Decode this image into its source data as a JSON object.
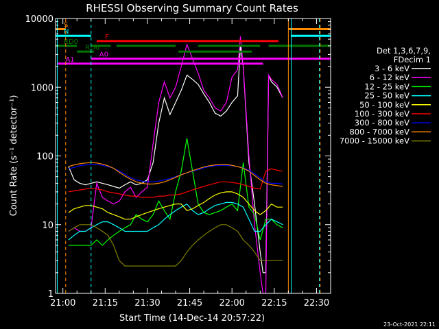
{
  "chart_data": {
    "type": "line",
    "title": "RHESSI Observing Summary Count Rates",
    "xlabel": "Start Time (14-Dec-14 20:57:22)",
    "ylabel": "Count Rate (s⁻¹ detector⁻¹)",
    "yscale": "log",
    "ylim": [
      1,
      10000
    ],
    "xlim": [
      57.4,
      155
    ],
    "x_unit": "minutes after 20:00 UT",
    "x_ticks": [
      {
        "value": 60,
        "label": "21:00"
      },
      {
        "value": 75,
        "label": "21:15"
      },
      {
        "value": 90,
        "label": "21:30"
      },
      {
        "value": 105,
        "label": "21:45"
      },
      {
        "value": 120,
        "label": "22:00"
      },
      {
        "value": 135,
        "label": "22:15"
      },
      {
        "value": 150,
        "label": "22:30"
      }
    ],
    "y_ticks": [
      {
        "value": 1,
        "label": "1"
      },
      {
        "value": 10,
        "label": "10"
      },
      {
        "value": 100,
        "label": "100"
      },
      {
        "value": 1000,
        "label": "1000"
      },
      {
        "value": 10000,
        "label": "10000"
      }
    ],
    "legend_header": [
      "Det 1,3,6,7,9,",
      "FDecim 1"
    ],
    "legend_placement": "right",
    "series": [
      {
        "name": "3 - 6 keV",
        "color": "#ffffff",
        "x": [
          62,
          64,
          66,
          68,
          70,
          72,
          74,
          76,
          78,
          80,
          82,
          84,
          86,
          88,
          90,
          92,
          94,
          96,
          98,
          100,
          102,
          104,
          106,
          108,
          110,
          112,
          114,
          116,
          118,
          120,
          122,
          123,
          124,
          126,
          128,
          130,
          131,
          132,
          133,
          134,
          136,
          138
        ],
        "y": [
          70,
          45,
          40,
          38,
          40,
          42,
          40,
          38,
          36,
          34,
          38,
          42,
          38,
          40,
          45,
          80,
          300,
          700,
          400,
          600,
          900,
          1500,
          1300,
          1100,
          800,
          600,
          420,
          380,
          450,
          600,
          750,
          4000,
          2000,
          80,
          20,
          4,
          2,
          2,
          1500,
          1200,
          1000,
          700
        ]
      },
      {
        "name": "6 - 12 keV",
        "color": "#ff00ff",
        "x": [
          62,
          64,
          66,
          68,
          70,
          72,
          74,
          76,
          78,
          80,
          82,
          84,
          86,
          88,
          90,
          92,
          94,
          96,
          98,
          100,
          102,
          104,
          106,
          108,
          110,
          112,
          114,
          116,
          118,
          120,
          122,
          123,
          124,
          126,
          128,
          130,
          131,
          132,
          133,
          134,
          136,
          138
        ],
        "y": [
          8,
          9,
          8,
          8,
          9,
          40,
          25,
          22,
          20,
          22,
          30,
          35,
          25,
          30,
          35,
          150,
          600,
          1200,
          700,
          1000,
          2000,
          4200,
          2600,
          1600,
          900,
          700,
          500,
          450,
          600,
          1400,
          1800,
          5500,
          2000,
          100,
          10,
          2,
          1,
          1,
          1500,
          1300,
          1100,
          700
        ]
      },
      {
        "name": "12 - 25 keV",
        "color": "#00ff00",
        "x": [
          62,
          64,
          66,
          68,
          70,
          72,
          74,
          76,
          78,
          80,
          82,
          84,
          86,
          88,
          90,
          92,
          94,
          96,
          98,
          100,
          102,
          104,
          106,
          108,
          110,
          112,
          114,
          116,
          118,
          120,
          122,
          124,
          126,
          128,
          130,
          132,
          134,
          136,
          138
        ],
        "y": [
          5,
          5,
          5,
          5,
          5,
          6,
          5,
          6,
          7,
          8,
          9,
          10,
          14,
          12,
          11,
          14,
          22,
          16,
          12,
          30,
          60,
          180,
          60,
          20,
          15,
          14,
          15,
          16,
          18,
          20,
          16,
          80,
          18,
          14,
          6,
          12,
          12,
          10,
          9
        ]
      },
      {
        "name": "25 - 50 keV",
        "color": "#00ffff",
        "x": [
          62,
          64,
          66,
          68,
          70,
          72,
          74,
          76,
          78,
          80,
          82,
          84,
          86,
          88,
          90,
          92,
          94,
          96,
          98,
          100,
          102,
          104,
          106,
          108,
          110,
          112,
          114,
          116,
          118,
          120,
          122,
          124,
          126,
          128,
          130,
          132,
          134,
          136,
          138
        ],
        "y": [
          6,
          7,
          8,
          8,
          9,
          10,
          11,
          11,
          10,
          9,
          8,
          8,
          8,
          8,
          8,
          9,
          10,
          12,
          14,
          16,
          18,
          20,
          16,
          14,
          15,
          17,
          19,
          20,
          21,
          21,
          20,
          18,
          12,
          8,
          8,
          10,
          12,
          11,
          10
        ]
      },
      {
        "name": "50 - 100 keV",
        "color": "#ffff00",
        "x": [
          62,
          64,
          66,
          68,
          70,
          72,
          74,
          76,
          78,
          80,
          82,
          84,
          86,
          88,
          90,
          92,
          94,
          96,
          98,
          100,
          102,
          104,
          106,
          108,
          110,
          112,
          114,
          116,
          118,
          120,
          122,
          124,
          126,
          128,
          130,
          132,
          134,
          136,
          138
        ],
        "y": [
          15,
          17,
          18,
          19,
          19,
          18,
          17,
          15,
          14,
          13,
          12,
          12,
          13,
          14,
          15,
          16,
          17,
          18,
          19,
          20,
          20,
          16,
          17,
          19,
          21,
          24,
          27,
          29,
          30,
          30,
          28,
          25,
          20,
          16,
          14,
          16,
          20,
          18,
          18
        ]
      },
      {
        "name": "100 - 300 keV",
        "color": "#ff0000",
        "x": [
          62,
          64,
          66,
          68,
          70,
          72,
          74,
          76,
          78,
          80,
          82,
          84,
          86,
          88,
          90,
          92,
          94,
          96,
          98,
          100,
          102,
          104,
          106,
          108,
          110,
          112,
          114,
          116,
          118,
          120,
          122,
          124,
          126,
          128,
          130,
          132,
          134,
          136,
          138
        ],
        "y": [
          30,
          31,
          32,
          33,
          34,
          33,
          32,
          30,
          29,
          28,
          27,
          26,
          26,
          25,
          25,
          25,
          26,
          26,
          27,
          27,
          28,
          30,
          32,
          34,
          36,
          38,
          40,
          42,
          42,
          41,
          40,
          38,
          36,
          34,
          33,
          60,
          65,
          62,
          60
        ]
      },
      {
        "name": "300 - 800 keV",
        "color": "#0000ff",
        "x": [
          62,
          64,
          66,
          68,
          70,
          72,
          74,
          76,
          78,
          80,
          82,
          84,
          86,
          88,
          90,
          92,
          94,
          96,
          98,
          100,
          102,
          104,
          106,
          108,
          110,
          112,
          114,
          116,
          118,
          120,
          122,
          124,
          126,
          128,
          130,
          132,
          134,
          136,
          138
        ],
        "y": [
          65,
          68,
          72,
          74,
          75,
          75,
          73,
          70,
          66,
          60,
          54,
          48,
          45,
          43,
          42,
          42,
          43,
          45,
          47,
          50,
          53,
          57,
          60,
          63,
          67,
          70,
          72,
          73,
          73,
          72,
          70,
          67,
          62,
          55,
          48,
          42,
          40,
          40,
          39
        ]
      },
      {
        "name": "800 - 7000 keV",
        "color": "#ff8c00",
        "x": [
          62,
          64,
          66,
          68,
          70,
          72,
          74,
          76,
          78,
          80,
          82,
          84,
          86,
          88,
          90,
          92,
          94,
          96,
          98,
          100,
          102,
          104,
          106,
          108,
          110,
          112,
          114,
          116,
          118,
          120,
          122,
          124,
          126,
          128,
          130,
          132,
          134,
          136,
          138
        ],
        "y": [
          70,
          74,
          77,
          79,
          80,
          79,
          76,
          72,
          66,
          58,
          51,
          46,
          42,
          40,
          39,
          39,
          40,
          42,
          45,
          49,
          53,
          57,
          61,
          65,
          69,
          72,
          74,
          75,
          75,
          73,
          70,
          66,
          60,
          52,
          45,
          40,
          38,
          37,
          36
        ]
      },
      {
        "name": "7000 - 15000 keV",
        "color": "#808000",
        "x": [
          62,
          64,
          66,
          68,
          70,
          72,
          74,
          76,
          78,
          80,
          82,
          84,
          86,
          88,
          90,
          92,
          94,
          96,
          98,
          100,
          102,
          104,
          106,
          108,
          110,
          112,
          114,
          116,
          118,
          120,
          122,
          124,
          126,
          128,
          130,
          132,
          134,
          136,
          138
        ],
        "y": [
          8,
          9,
          10,
          10,
          10,
          9,
          8,
          7,
          5,
          3,
          2.5,
          2.5,
          2.5,
          2.5,
          2.5,
          2.5,
          2.5,
          2.5,
          2.5,
          2.5,
          3,
          4,
          5,
          6,
          7,
          8,
          9,
          10,
          10,
          9,
          8,
          6,
          5,
          4,
          3,
          3,
          3,
          3,
          3
        ]
      }
    ],
    "flag_bars": [
      {
        "label": "S",
        "color": "#ff8c00",
        "y": 7000,
        "segments": [
          [
            57.4,
            61
          ]
        ]
      },
      {
        "label": "",
        "color": "#ff8c00",
        "y": 7000,
        "segments": [
          [
            140,
            155
          ]
        ]
      },
      {
        "label": "N",
        "color": "#00ffff",
        "y": 5600,
        "segments": [
          [
            57.4,
            70
          ]
        ]
      },
      {
        "label": "",
        "color": "#00ffff",
        "y": 5600,
        "segments": [
          [
            141,
            155
          ]
        ]
      },
      {
        "label": "F",
        "color": "#ff0000",
        "y": 4700,
        "segments": [
          [
            72,
            136.5
          ]
        ]
      },
      {
        "label": "RD0",
        "color": "#007700",
        "y": 4000,
        "segments": [
          [
            57.4,
            65
          ],
          [
            70,
            77
          ],
          [
            79,
            100
          ],
          [
            108,
            130
          ],
          [
            133,
            155
          ]
        ]
      },
      {
        "label": "RD6",
        "color": "#007700",
        "y": 3300,
        "segments": [
          [
            65,
            71
          ],
          [
            101,
            127
          ]
        ]
      },
      {
        "label": "A0",
        "color": "#ff00ff",
        "y": 2600,
        "segments": [
          [
            70,
            155
          ]
        ]
      },
      {
        "label": "A1",
        "color": "#ff00ff",
        "y": 2200,
        "segments": [
          [
            58,
            131
          ]
        ]
      }
    ],
    "vlines": [
      {
        "x": 58,
        "color": "#00ffff",
        "dash": false
      },
      {
        "x": 61,
        "color": "#ff8c00",
        "dash": true
      },
      {
        "x": 70,
        "color": "#00ffff",
        "dash": true
      },
      {
        "x": 140,
        "color": "#ff8c00",
        "dash": false
      },
      {
        "x": 141,
        "color": "#00ffff",
        "dash": false
      },
      {
        "x": 151,
        "color": "#00ffff",
        "dash": true
      },
      {
        "x": 151.3,
        "color": "#ff8c00",
        "dash": true
      }
    ],
    "footer_date": "23-Oct-2021 22:11"
  }
}
